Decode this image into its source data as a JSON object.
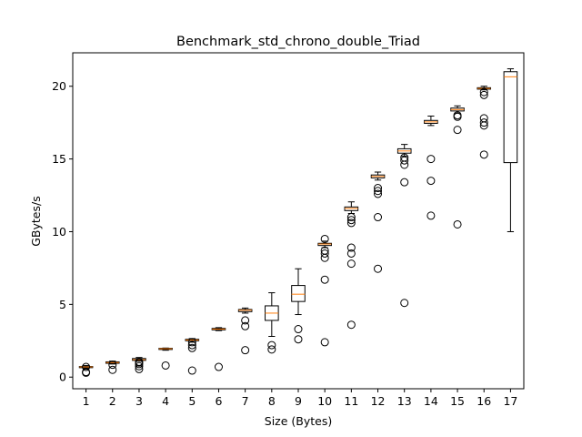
{
  "chart_data": {
    "type": "boxplot",
    "title": "Benchmark_std_chrono_double_Triad",
    "xlabel": "Size (Bytes)",
    "ylabel": "GBytes/s",
    "categories": [
      "1",
      "2",
      "3",
      "4",
      "5",
      "6",
      "7",
      "8",
      "9",
      "10",
      "11",
      "12",
      "13",
      "14",
      "15",
      "16",
      "17"
    ],
    "ylim": [
      -0.8,
      22.3
    ],
    "yticks": [
      0,
      5,
      10,
      15,
      20
    ],
    "grid": false,
    "colors": {
      "box": "#000000",
      "median": "#ff7f0e",
      "flier": "#000000"
    },
    "boxes": [
      {
        "whislo": 0.6,
        "q1": 0.65,
        "med": 0.7,
        "q3": 0.73,
        "whishi": 0.8,
        "fliers": [
          0.3,
          0.35,
          0.7
        ]
      },
      {
        "whislo": 0.9,
        "q1": 0.95,
        "med": 1.0,
        "q3": 1.05,
        "whishi": 1.1,
        "fliers": [
          0.5,
          0.85
        ]
      },
      {
        "whislo": 1.1,
        "q1": 1.15,
        "med": 1.2,
        "q3": 1.28,
        "whishi": 1.35,
        "fliers": [
          0.55,
          0.75,
          0.9,
          1.0,
          1.05
        ]
      },
      {
        "whislo": 1.85,
        "q1": 1.9,
        "med": 1.95,
        "q3": 1.98,
        "whishi": 2.0,
        "fliers": [
          0.8
        ]
      },
      {
        "whislo": 2.4,
        "q1": 2.5,
        "med": 2.55,
        "q3": 2.6,
        "whishi": 2.65,
        "fliers": [
          0.45,
          2.0,
          2.2,
          2.4
        ]
      },
      {
        "whislo": 3.2,
        "q1": 3.25,
        "med": 3.3,
        "q3": 3.35,
        "whishi": 3.4,
        "fliers": [
          0.7
        ]
      },
      {
        "whislo": 4.4,
        "q1": 4.5,
        "med": 4.6,
        "q3": 4.65,
        "whishi": 4.75,
        "fliers": [
          1.85,
          3.5,
          3.9
        ]
      },
      {
        "whislo": 2.8,
        "q1": 3.9,
        "med": 4.4,
        "q3": 4.9,
        "whishi": 5.8,
        "fliers": [
          1.9,
          2.2
        ]
      },
      {
        "whislo": 4.3,
        "q1": 5.2,
        "med": 5.7,
        "q3": 6.3,
        "whishi": 7.45,
        "fliers": [
          2.6,
          3.3
        ]
      },
      {
        "whislo": 8.9,
        "q1": 9.05,
        "med": 9.15,
        "q3": 9.2,
        "whishi": 9.35,
        "fliers": [
          2.4,
          6.7,
          8.2,
          8.5,
          8.7,
          9.5
        ]
      },
      {
        "whislo": 11.25,
        "q1": 11.45,
        "med": 11.6,
        "q3": 11.7,
        "whishi": 12.05,
        "fliers": [
          3.6,
          7.8,
          8.5,
          8.9,
          10.6,
          10.8,
          11.0
        ]
      },
      {
        "whislo": 13.55,
        "q1": 13.7,
        "med": 13.8,
        "q3": 13.9,
        "whishi": 14.1,
        "fliers": [
          7.45,
          11.0,
          12.6,
          12.8,
          13.0
        ]
      },
      {
        "whislo": 15.2,
        "q1": 15.4,
        "med": 15.55,
        "q3": 15.7,
        "whishi": 16.0,
        "fliers": [
          5.1,
          13.4,
          14.6,
          14.9,
          15.1
        ]
      },
      {
        "whislo": 17.3,
        "q1": 17.45,
        "med": 17.55,
        "q3": 17.65,
        "whishi": 17.95,
        "fliers": [
          11.1,
          13.5,
          15.0
        ]
      },
      {
        "whislo": 18.15,
        "q1": 18.3,
        "med": 18.4,
        "q3": 18.5,
        "whishi": 18.65,
        "fliers": [
          10.5,
          17.0,
          17.9,
          18.0
        ]
      },
      {
        "whislo": 19.75,
        "q1": 19.8,
        "med": 19.85,
        "q3": 19.9,
        "whishi": 20.0,
        "fliers": [
          15.3,
          17.3,
          17.5,
          17.8,
          19.4,
          19.6
        ]
      },
      {
        "whislo": 10.0,
        "q1": 14.75,
        "med": 20.65,
        "q3": 21.0,
        "whishi": 21.2,
        "fliers": []
      }
    ]
  }
}
